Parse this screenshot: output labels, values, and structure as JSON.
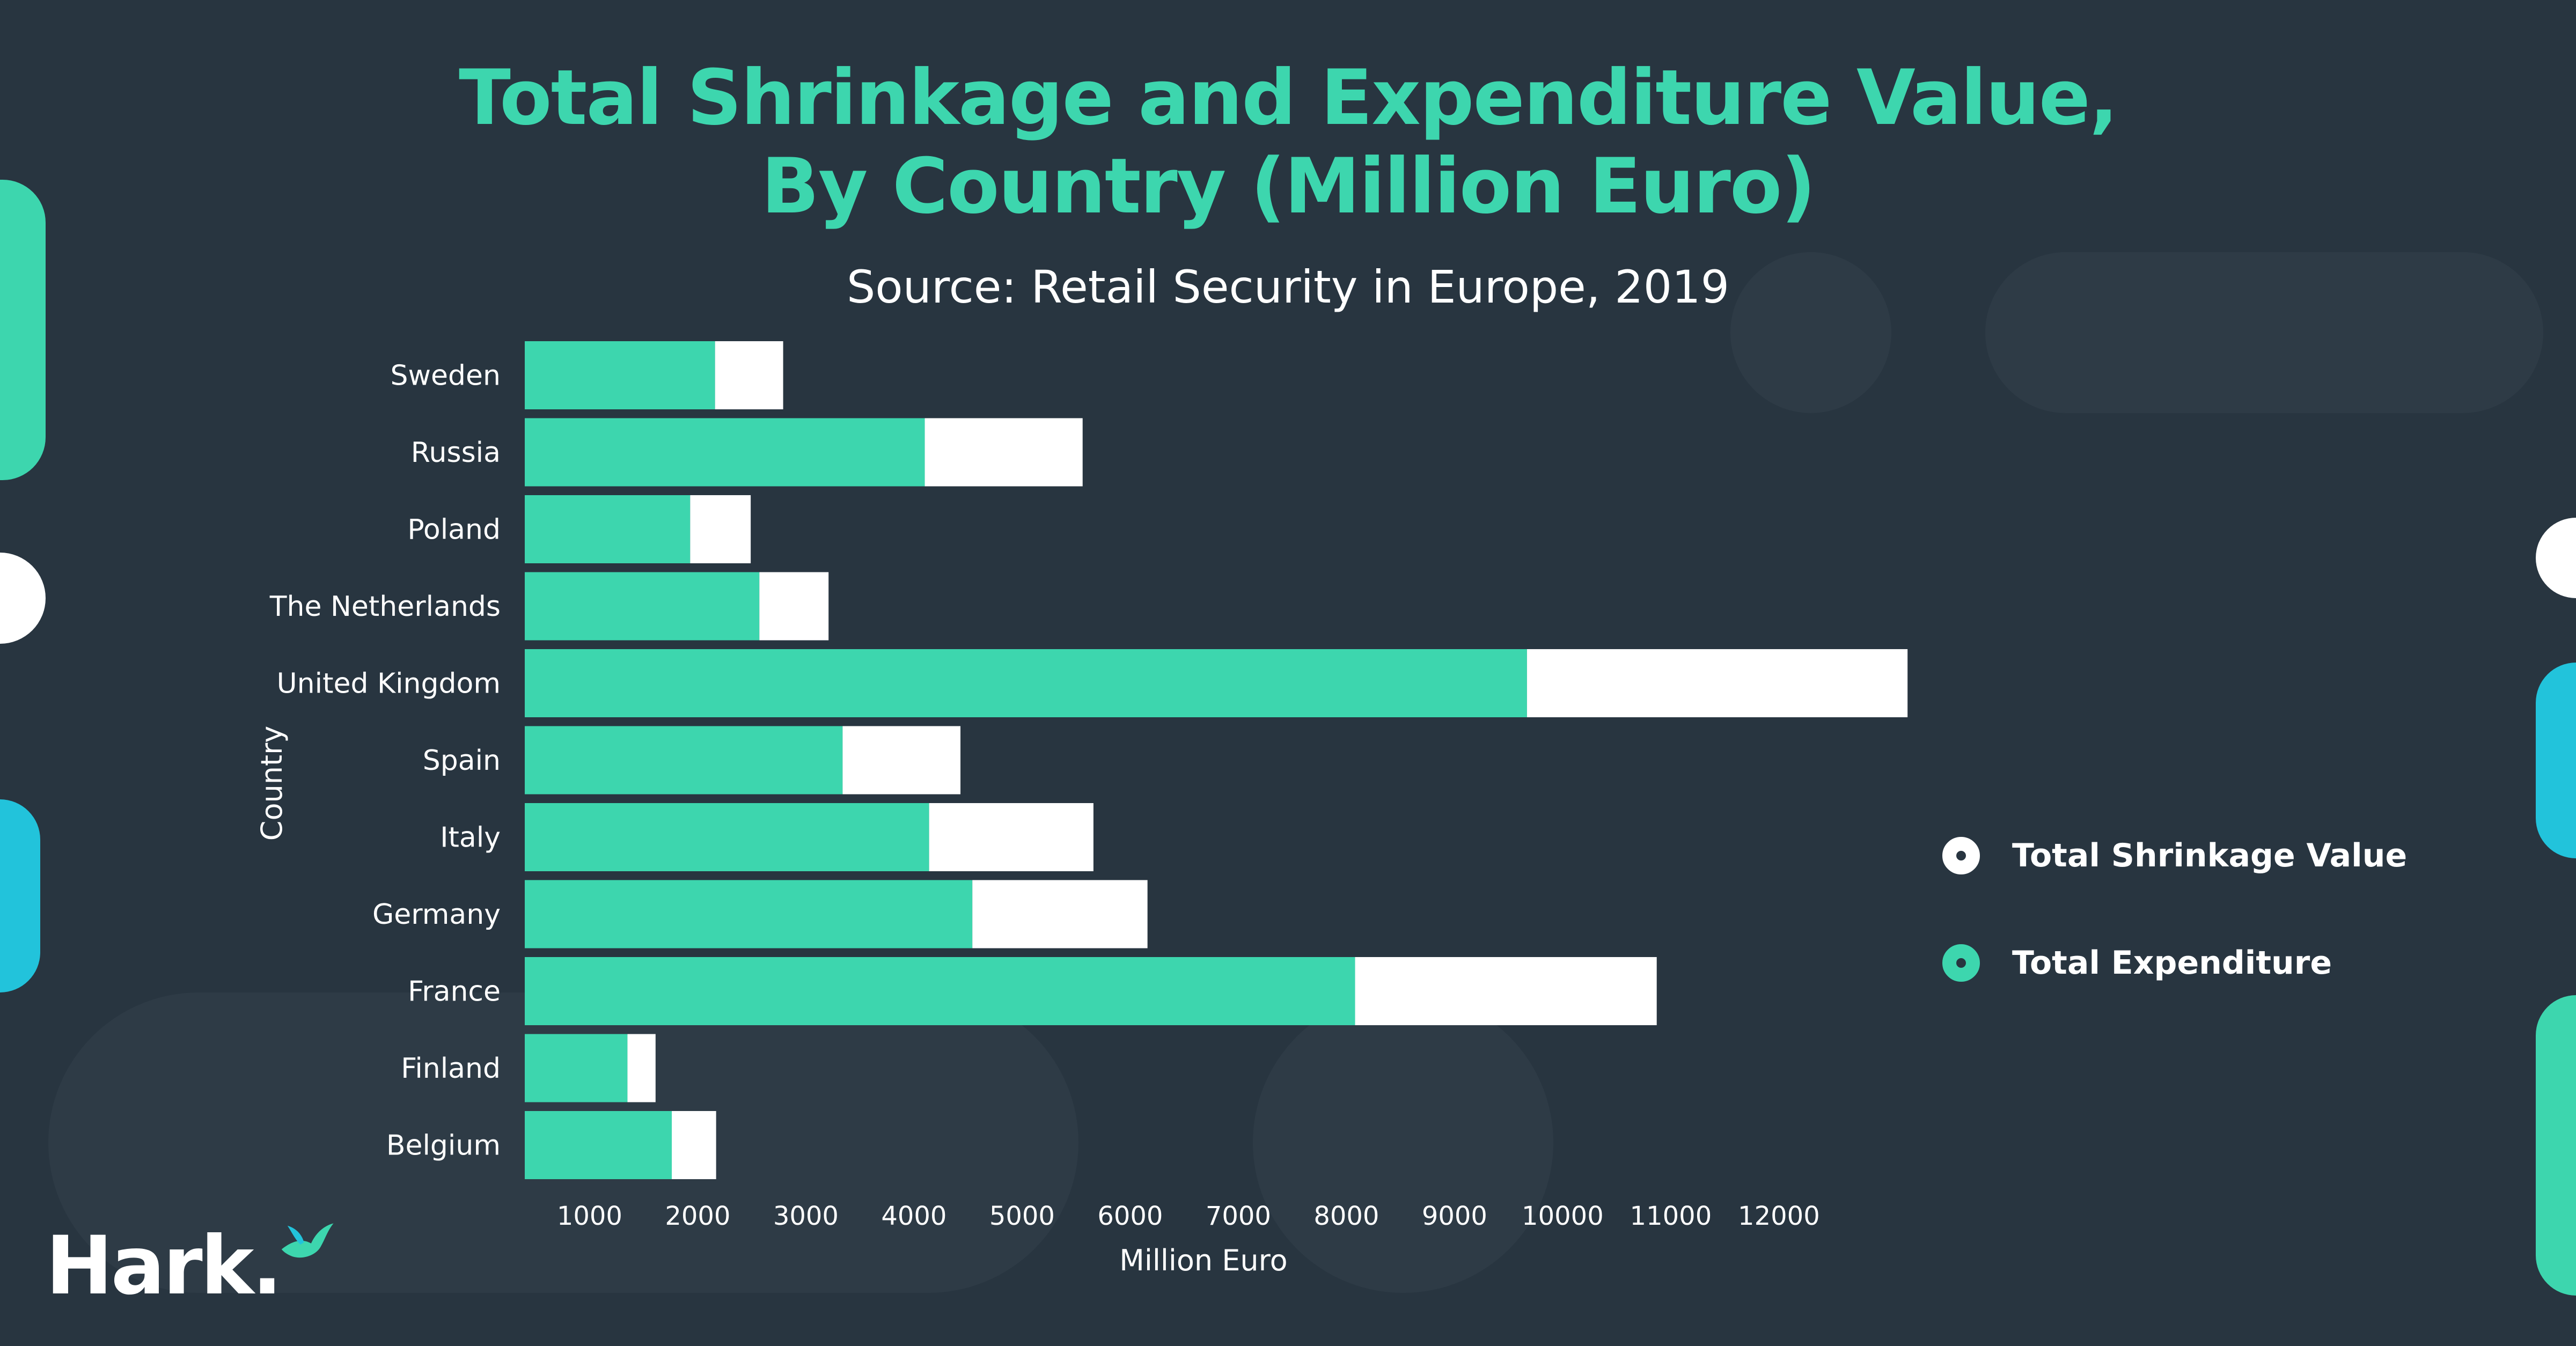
{
  "colors": {
    "background": "#283540",
    "title": "#3dd6ae",
    "expenditure": "#3dd6ae",
    "shrinkage": "#ffffff",
    "axis_text": "#ffffff",
    "decor_green": "#3dd6ae",
    "decor_blue": "#22c3db",
    "decor_shape": "#2e3b46"
  },
  "brand": {
    "logo_text": "Hark.",
    "logo_icon": "bird-icon"
  },
  "legend": {
    "items": [
      {
        "label": "Total Shrinkage Value",
        "color": "#ffffff"
      },
      {
        "label": "Total Expenditure",
        "color": "#3dd6ae"
      }
    ]
  },
  "chart_data": {
    "type": "bar",
    "orientation": "horizontal",
    "stacked": true,
    "title_lines": [
      "Total Shrinkage and Expenditure Value,",
      "By Country (Million Euro)"
    ],
    "subtitle": "Source: Retail Security in Europe, 2019",
    "xlabel": "Million Euro",
    "ylabel": "Country",
    "x_ticks": [
      1000,
      2000,
      3000,
      4000,
      5000,
      6000,
      7000,
      8000,
      9000,
      10000,
      11000,
      12000
    ],
    "xlim": [
      400,
      13500
    ],
    "grid": false,
    "legend_position": "right",
    "categories": [
      "Sweden",
      "Russia",
      "Poland",
      "The Netherlands",
      "United Kingdom",
      "Spain",
      "Italy",
      "Germany",
      "France",
      "Finland",
      "Belgium"
    ],
    "series": [
      {
        "name": "Total Expenditure",
        "values": [
          1760,
          3700,
          1530,
          2170,
          9270,
          2940,
          3740,
          4140,
          7680,
          950,
          1360
        ]
      },
      {
        "name": "Total Shrinkage Value",
        "values": [
          630,
          1460,
          560,
          640,
          3520,
          1090,
          1520,
          1620,
          2790,
          260,
          410
        ]
      }
    ]
  }
}
